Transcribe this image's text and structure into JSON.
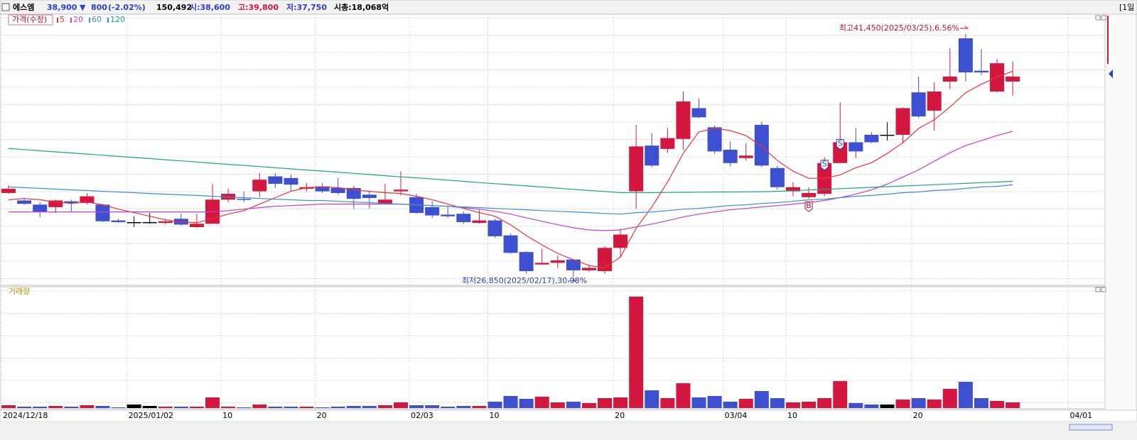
{
  "header": {
    "name": "에스엠",
    "price": "38,900",
    "direction": "▼",
    "change": "800",
    "change_pct": "(-2.02%)",
    "volume": "150,492",
    "open": "시:38,600",
    "high": "고:39,800",
    "low": "저:37,750",
    "market_cap": "시총:18,068억",
    "period": "[1일"
  },
  "chart_data": [
    {
      "type": "candlestick",
      "legend_title": "가격(수정)",
      "categories": [
        "2024/12/18",
        null,
        null,
        null,
        null,
        null,
        null,
        null,
        "2025/01/02",
        null,
        null,
        null,
        null,
        null,
        "10",
        null,
        null,
        null,
        null,
        null,
        "20",
        null,
        null,
        null,
        null,
        null,
        "02/03",
        null,
        null,
        null,
        null,
        "10",
        null,
        null,
        null,
        null,
        null,
        null,
        null,
        "20",
        null,
        null,
        null,
        null,
        null,
        null,
        "03/04",
        null,
        null,
        null,
        "10",
        null,
        null,
        null,
        null,
        null,
        null,
        null,
        "20",
        null,
        null,
        null,
        null,
        null,
        null,
        null,
        null,
        null,
        "04/01",
        null
      ],
      "open": [
        31900,
        31450,
        31200,
        31050,
        31400,
        31300,
        31200,
        30250,
        30150,
        30150,
        30100,
        30350,
        29850,
        30050,
        31500,
        31550,
        32000,
        32900,
        32800,
        32150,
        32300,
        32200,
        32200,
        31800,
        31250,
        32000,
        31650,
        31050,
        30600,
        30650,
        30100,
        30250,
        29350,
        28350,
        27600,
        27700,
        27900,
        27250,
        27200,
        28600,
        32000,
        34750,
        34550,
        35150,
        37000,
        35850,
        34500,
        34000,
        36000,
        33400,
        32000,
        31650,
        31850,
        33700,
        34950,
        35400,
        35400,
        35400,
        37950,
        36850,
        38600,
        41200,
        39250,
        38000,
        38600,
        null,
        null,
        null,
        null,
        null
      ],
      "high": [
        32350,
        31600,
        31350,
        31500,
        31500,
        31900,
        31250,
        30350,
        30500,
        30700,
        30350,
        30650,
        30650,
        32450,
        32150,
        32000,
        33100,
        33100,
        33000,
        32500,
        32500,
        32800,
        32350,
        32000,
        32450,
        33200,
        31850,
        31400,
        31150,
        30800,
        30900,
        30350,
        29450,
        28400,
        28550,
        28150,
        27950,
        27600,
        28700,
        29750,
        36000,
        35500,
        35800,
        38000,
        37600,
        35950,
        35000,
        34900,
        36200,
        33550,
        32550,
        32250,
        34050,
        37350,
        35800,
        35550,
        36150,
        37050,
        38900,
        38550,
        40600,
        41450,
        40550,
        39950,
        39800,
        null,
        null,
        null,
        null,
        null
      ],
      "low": [
        31850,
        31200,
        30450,
        30700,
        30750,
        31200,
        30150,
        30100,
        29850,
        30050,
        30000,
        29950,
        29800,
        30050,
        31350,
        31350,
        31650,
        32200,
        32000,
        32000,
        31900,
        31800,
        30950,
        30950,
        31250,
        31750,
        30650,
        30400,
        30400,
        30050,
        30050,
        29200,
        28250,
        27050,
        27600,
        27400,
        26850,
        27150,
        27050,
        28000,
        30950,
        33450,
        34300,
        34500,
        36400,
        34250,
        33500,
        33850,
        33450,
        32100,
        31700,
        31550,
        31700,
        33700,
        34000,
        34900,
        35050,
        34900,
        36400,
        35650,
        38150,
        38600,
        39000,
        37950,
        37750,
        null,
        null,
        null,
        null,
        null
      ],
      "close": [
        32150,
        31250,
        30750,
        31450,
        31300,
        31700,
        30200,
        30150,
        30150,
        30150,
        30200,
        30000,
        30050,
        31500,
        31850,
        31500,
        32700,
        32450,
        32400,
        32250,
        32000,
        31900,
        31550,
        31600,
        31500,
        32100,
        30700,
        30550,
        30500,
        30150,
        30250,
        29300,
        28300,
        27200,
        27700,
        27850,
        27250,
        27400,
        28600,
        29400,
        34700,
        33550,
        35200,
        37400,
        36450,
        34400,
        33700,
        34150,
        33550,
        32250,
        32250,
        31900,
        33700,
        34950,
        34400,
        34950,
        35400,
        37000,
        36500,
        38000,
        38900,
        39150,
        39150,
        39700,
        38900,
        null,
        null,
        null,
        null,
        null
      ],
      "up_color": "#d3173e",
      "down_color": "#3d50d0",
      "flat_color": "#000000",
      "ylim": [
        26350,
        42650
      ],
      "series": [
        {
          "name": "5",
          "color": "#e8333a",
          "values": [
            31490,
            31570,
            31490,
            31360,
            31270,
            31360,
            31190,
            30930,
            30720,
            30500,
            30290,
            30160,
            30110,
            30370,
            30630,
            30840,
            31230,
            31620,
            32000,
            32220,
            32260,
            32220,
            32090,
            32000,
            31920,
            31870,
            31700,
            31490,
            31230,
            30970,
            30720,
            30500,
            29990,
            29340,
            28780,
            28270,
            27880,
            27540,
            27410,
            28050,
            29770,
            31060,
            32560,
            34280,
            35570,
            35780,
            35650,
            35350,
            34710,
            33850,
            33210,
            32780,
            32780,
            32990,
            33420,
            33720,
            34280,
            34920,
            35780,
            36300,
            37070,
            37930,
            38440,
            38870,
            39220,
            null,
            null,
            null,
            null,
            null
          ]
        },
        {
          "name": "20",
          "color": "#c540c8",
          "values": [
            30760,
            30760,
            30760,
            30760,
            30760,
            30760,
            30760,
            30760,
            30760,
            30760,
            30760,
            30760,
            30760,
            30760,
            30840,
            30930,
            31020,
            31100,
            31140,
            31190,
            31230,
            31230,
            31230,
            31230,
            31230,
            31230,
            31190,
            31140,
            31100,
            31020,
            30930,
            30800,
            30630,
            30410,
            30200,
            29990,
            29810,
            29680,
            29640,
            29680,
            29860,
            30030,
            30240,
            30460,
            30630,
            30760,
            30890,
            30970,
            31060,
            31140,
            31230,
            31320,
            31450,
            31620,
            31830,
            32090,
            32430,
            32860,
            33290,
            33810,
            34320,
            34750,
            35050,
            35350,
            35610,
            null,
            null,
            null,
            null,
            null
          ]
        },
        {
          "name": "60",
          "color": "#3b8fd2",
          "values": [
            32260,
            32220,
            32180,
            32130,
            32090,
            32050,
            32000,
            31960,
            31920,
            31870,
            31830,
            31790,
            31750,
            31700,
            31660,
            31620,
            31570,
            31530,
            31490,
            31450,
            31450,
            31400,
            31360,
            31320,
            31270,
            31230,
            31190,
            31140,
            31100,
            31060,
            31020,
            30970,
            30930,
            30890,
            30840,
            30800,
            30760,
            30720,
            30670,
            30630,
            30720,
            30760,
            30840,
            30930,
            30970,
            31060,
            31140,
            31190,
            31270,
            31320,
            31400,
            31490,
            31530,
            31620,
            31700,
            31750,
            31830,
            31920,
            31960,
            32050,
            32090,
            32180,
            32260,
            32300,
            32390,
            null,
            null,
            null,
            null,
            null
          ]
        },
        {
          "name": "120",
          "color": "#17a58c",
          "values": [
            34580,
            34510,
            34440,
            34370,
            34310,
            34240,
            34170,
            34100,
            34030,
            33970,
            33900,
            33830,
            33760,
            33690,
            33620,
            33560,
            33490,
            33420,
            33350,
            33280,
            33220,
            33150,
            33080,
            33010,
            32940,
            32870,
            32810,
            32740,
            32670,
            32600,
            32530,
            32460,
            32390,
            32330,
            32260,
            32190,
            32120,
            32050,
            31990,
            31920,
            31920,
            31920,
            31930,
            31940,
            31950,
            31960,
            31960,
            31970,
            31980,
            32000,
            32040,
            32080,
            32120,
            32160,
            32200,
            32240,
            32280,
            32320,
            32360,
            32400,
            32440,
            32480,
            32520,
            32560,
            32600,
            null,
            null,
            null,
            null,
            null
          ]
        }
      ],
      "signals": [
        null,
        null,
        null,
        null,
        null,
        null,
        null,
        null,
        null,
        null,
        null,
        null,
        null,
        null,
        null,
        null,
        null,
        null,
        null,
        null,
        null,
        null,
        null,
        null,
        null,
        null,
        null,
        null,
        null,
        null,
        null,
        null,
        null,
        null,
        null,
        null,
        null,
        null,
        null,
        null,
        null,
        null,
        null,
        null,
        null,
        null,
        null,
        null,
        null,
        null,
        null,
        "B",
        "S",
        "S",
        null,
        null,
        null,
        null,
        null,
        null,
        null,
        null,
        null,
        null,
        null,
        null,
        null,
        null,
        null,
        null
      ],
      "annotations": [
        {
          "text": "최고41,450(2025/03/25),6.56%"
        },
        {
          "text": "최저26,850(2025/02/17),30.98%"
        }
      ]
    },
    {
      "type": "bar",
      "legend_title": "거래량",
      "values": [
        75000,
        38000,
        38000,
        56000,
        38000,
        75000,
        56000,
        19000,
        94000,
        56000,
        38000,
        38000,
        38000,
        282000,
        38000,
        19000,
        94000,
        38000,
        38000,
        38000,
        19000,
        38000,
        56000,
        56000,
        75000,
        150000,
        75000,
        75000,
        38000,
        56000,
        56000,
        169000,
        320000,
        244000,
        301000,
        150000,
        169000,
        132000,
        263000,
        282000,
        2952000,
        470000,
        263000,
        658000,
        282000,
        320000,
        169000,
        244000,
        451000,
        263000,
        150000,
        169000,
        263000,
        714000,
        132000,
        94000,
        94000,
        226000,
        263000,
        226000,
        508000,
        696000,
        263000,
        188000,
        150492,
        null,
        null,
        null,
        null,
        null
      ],
      "ylim": [
        0,
        3100000
      ]
    }
  ]
}
